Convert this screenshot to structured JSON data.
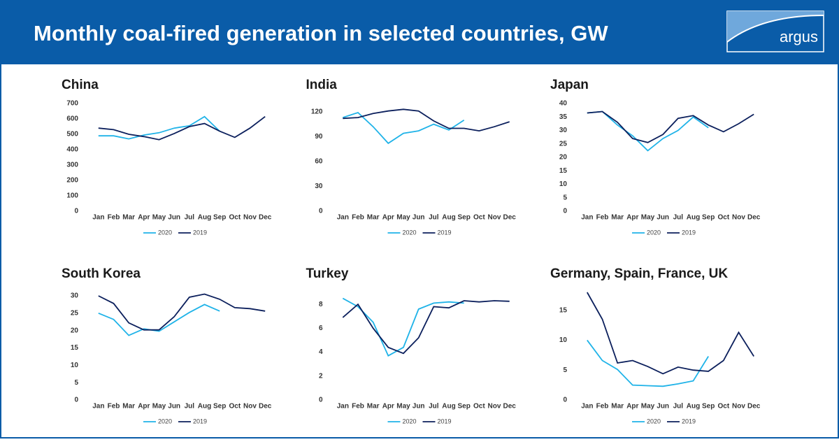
{
  "title": "Monthly coal-fired generation in selected countries, GW",
  "logo": "argus",
  "chart_data": [
    {
      "type": "line",
      "title": "China",
      "categories": [
        "Jan",
        "Feb",
        "Mar",
        "Apr",
        "May",
        "Jun",
        "Jul",
        "Aug",
        "Sep",
        "Oct",
        "Nov",
        "Dec"
      ],
      "series": [
        {
          "name": "2020",
          "color": "#1fb3e8",
          "values": [
            490,
            490,
            470,
            495,
            510,
            540,
            555,
            615,
            520,
            null,
            null,
            null
          ]
        },
        {
          "name": "2019",
          "color": "#0b1f5c",
          "values": [
            540,
            530,
            500,
            485,
            465,
            505,
            550,
            570,
            520,
            480,
            540,
            615
          ]
        }
      ],
      "ylim": [
        0,
        700
      ],
      "yticks": [
        0,
        100,
        200,
        300,
        400,
        500,
        600,
        700
      ],
      "legend": "bottom"
    },
    {
      "type": "line",
      "title": "India",
      "categories": [
        "Jan",
        "Feb",
        "Mar",
        "Apr",
        "May",
        "Jun",
        "Jul",
        "Aug",
        "Sep",
        "Oct",
        "Nov",
        "Dec"
      ],
      "series": [
        {
          "name": "2020",
          "color": "#1fb3e8",
          "values": [
            113,
            119,
            102,
            82,
            94,
            97,
            105,
            98,
            110,
            null,
            null,
            null
          ]
        },
        {
          "name": "2019",
          "color": "#0b1f5c",
          "values": [
            112,
            113,
            118,
            121,
            123,
            121,
            109,
            100,
            100,
            97,
            102,
            108
          ]
        }
      ],
      "ylim": [
        0,
        130
      ],
      "yticks": [
        0,
        30,
        60,
        90,
        120
      ],
      "legend": "bottom"
    },
    {
      "type": "line",
      "title": "Japan",
      "categories": [
        "Jan",
        "Feb",
        "Mar",
        "Apr",
        "May",
        "Jun",
        "Jul",
        "Aug",
        "Sep",
        "Oct",
        "Nov",
        "Dec"
      ],
      "series": [
        {
          "name": "2020",
          "color": "#1fb3e8",
          "values": [
            36.5,
            37,
            32,
            28,
            22.5,
            27,
            30,
            35,
            31,
            null,
            null,
            null
          ]
        },
        {
          "name": "2019",
          "color": "#0b1f5c",
          "values": [
            36.5,
            37,
            33,
            27,
            25.5,
            28.5,
            34.5,
            35.5,
            32,
            29.5,
            32.5,
            36
          ]
        }
      ],
      "ylim": [
        0,
        40
      ],
      "yticks": [
        0,
        5,
        10,
        15,
        20,
        25,
        30,
        35,
        40
      ],
      "legend": "bottom"
    },
    {
      "type": "line",
      "title": "South Korea",
      "categories": [
        "Jan",
        "Feb",
        "Mar",
        "Apr",
        "May",
        "Jun",
        "Jul",
        "Aug",
        "Sep",
        "Oct",
        "Nov",
        "Dec"
      ],
      "series": [
        {
          "name": "2020",
          "color": "#1fb3e8",
          "values": [
            25,
            23.2,
            18.6,
            20.5,
            19.8,
            22.5,
            25.2,
            27.5,
            25.6,
            null,
            null,
            null
          ]
        },
        {
          "name": "2019",
          "color": "#0b1f5c",
          "values": [
            30,
            27.8,
            22.2,
            20.2,
            20.2,
            24,
            29.6,
            30.5,
            29,
            26.6,
            26.3,
            25.6
          ]
        }
      ],
      "ylim": [
        0,
        31
      ],
      "yticks": [
        0,
        5,
        10,
        15,
        20,
        25,
        30
      ],
      "legend": "bottom"
    },
    {
      "type": "line",
      "title": "Turkey",
      "categories": [
        "Jan",
        "Feb",
        "Mar",
        "Apr",
        "May",
        "Jun",
        "Jul",
        "Aug",
        "Sep",
        "Oct",
        "Nov",
        "Dec"
      ],
      "series": [
        {
          "name": "2020",
          "color": "#1fb3e8",
          "values": [
            8.5,
            7.8,
            6.5,
            3.7,
            4.4,
            7.6,
            8.1,
            8.2,
            8.1,
            null,
            null,
            null
          ]
        },
        {
          "name": "2019",
          "color": "#0b1f5c",
          "values": [
            6.9,
            8.0,
            6.0,
            4.4,
            3.9,
            5.2,
            7.8,
            7.7,
            8.3,
            8.2,
            8.3,
            8.25
          ]
        }
      ],
      "ylim": [
        0,
        9
      ],
      "yticks": [
        0,
        2,
        4,
        6,
        8
      ],
      "legend": "bottom"
    },
    {
      "type": "line",
      "title": "Germany, Spain, France, UK",
      "categories": [
        "Jan",
        "Feb",
        "Mar",
        "Apr",
        "May",
        "Jun",
        "Jul",
        "Aug",
        "Sep",
        "Oct",
        "Nov",
        "Dec"
      ],
      "series": [
        {
          "name": "2020",
          "color": "#1fb3e8",
          "values": [
            10,
            6.6,
            5.1,
            2.5,
            2.4,
            2.3,
            2.7,
            3.2,
            7.3,
            null,
            null,
            null
          ]
        },
        {
          "name": "2019",
          "color": "#0b1f5c",
          "values": [
            18,
            13.5,
            6.2,
            6.6,
            5.6,
            4.4,
            5.5,
            5.0,
            4.8,
            6.6,
            11.3,
            7.3
          ]
        }
      ],
      "ylim": [
        0,
        18
      ],
      "yticks": [
        0,
        5,
        10,
        15
      ],
      "legend": "bottom"
    }
  ]
}
